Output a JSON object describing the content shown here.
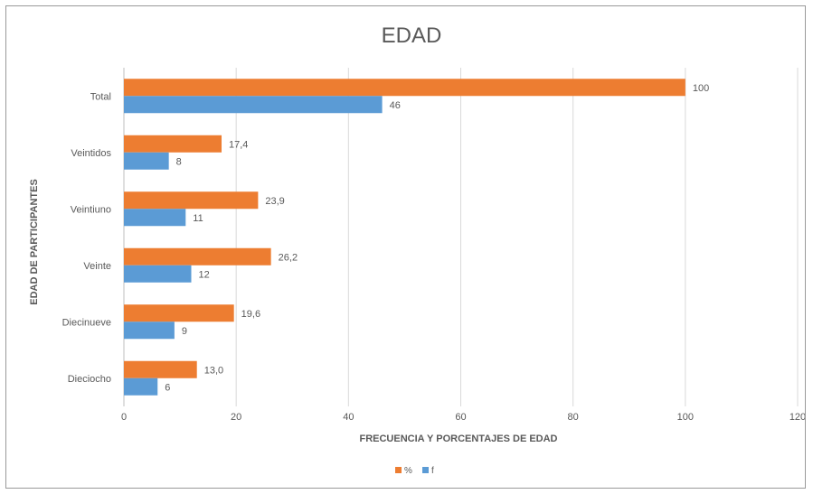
{
  "chart_data": {
    "type": "bar",
    "orientation": "horizontal",
    "title": "EDAD",
    "xlabel": "FRECUENCIA Y PORCENTAJES DE EDAD",
    "ylabel": "EDAD DE PARTICIPANTES",
    "categories": [
      "Dieciocho",
      "Diecinueve",
      "Veinte",
      "Veintiuno",
      "Veintidos",
      "Total"
    ],
    "series": [
      {
        "name": "%",
        "color": "#ed7d31",
        "values": [
          13.0,
          19.6,
          26.2,
          23.9,
          17.4,
          100
        ],
        "labels": [
          "13,0",
          "19,6",
          "26,2",
          "23,9",
          "17,4",
          "100"
        ]
      },
      {
        "name": "f",
        "color": "#5b9bd5",
        "values": [
          6,
          9,
          12,
          11,
          8,
          46
        ],
        "labels": [
          "6",
          "9",
          "12",
          "11",
          "8",
          "46"
        ]
      }
    ],
    "xlim": [
      0,
      120
    ],
    "xticks": [
      0,
      20,
      40,
      60,
      80,
      100,
      120
    ],
    "grid": "vertical",
    "legend_position": "bottom"
  }
}
